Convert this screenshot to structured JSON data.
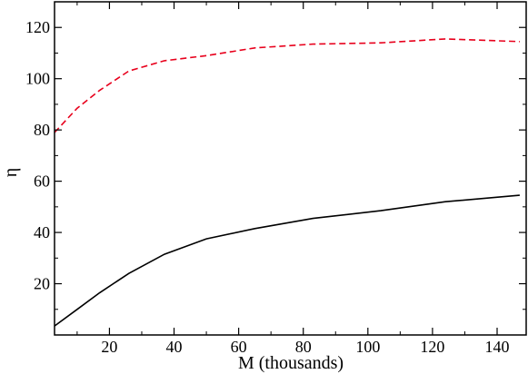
{
  "chart_data": {
    "type": "line",
    "xlabel": "M (thousands)",
    "ylabel": "η",
    "xlim": [
      3,
      149
    ],
    "ylim": [
      0,
      130
    ],
    "xticks": [
      20,
      40,
      60,
      80,
      100,
      120,
      140
    ],
    "yticks": [
      20,
      40,
      60,
      80,
      100,
      120
    ],
    "grid": false,
    "series": [
      {
        "color": "#000000",
        "style": "solid",
        "x": [
          3,
          10,
          17,
          26,
          37,
          50,
          65,
          83,
          104,
          124,
          147
        ],
        "y": [
          3.5,
          10,
          16.5,
          24,
          31.5,
          37.5,
          41.5,
          45.5,
          48.5,
          52,
          54.5
        ]
      },
      {
        "color": "#e8001c",
        "style": "dashed",
        "x": [
          3,
          10,
          17,
          26,
          37,
          50,
          65,
          83,
          104,
          124,
          147
        ],
        "y": [
          79,
          88.5,
          95.5,
          103,
          107,
          109,
          112,
          113.5,
          114,
          115.5,
          114.5
        ]
      }
    ]
  }
}
